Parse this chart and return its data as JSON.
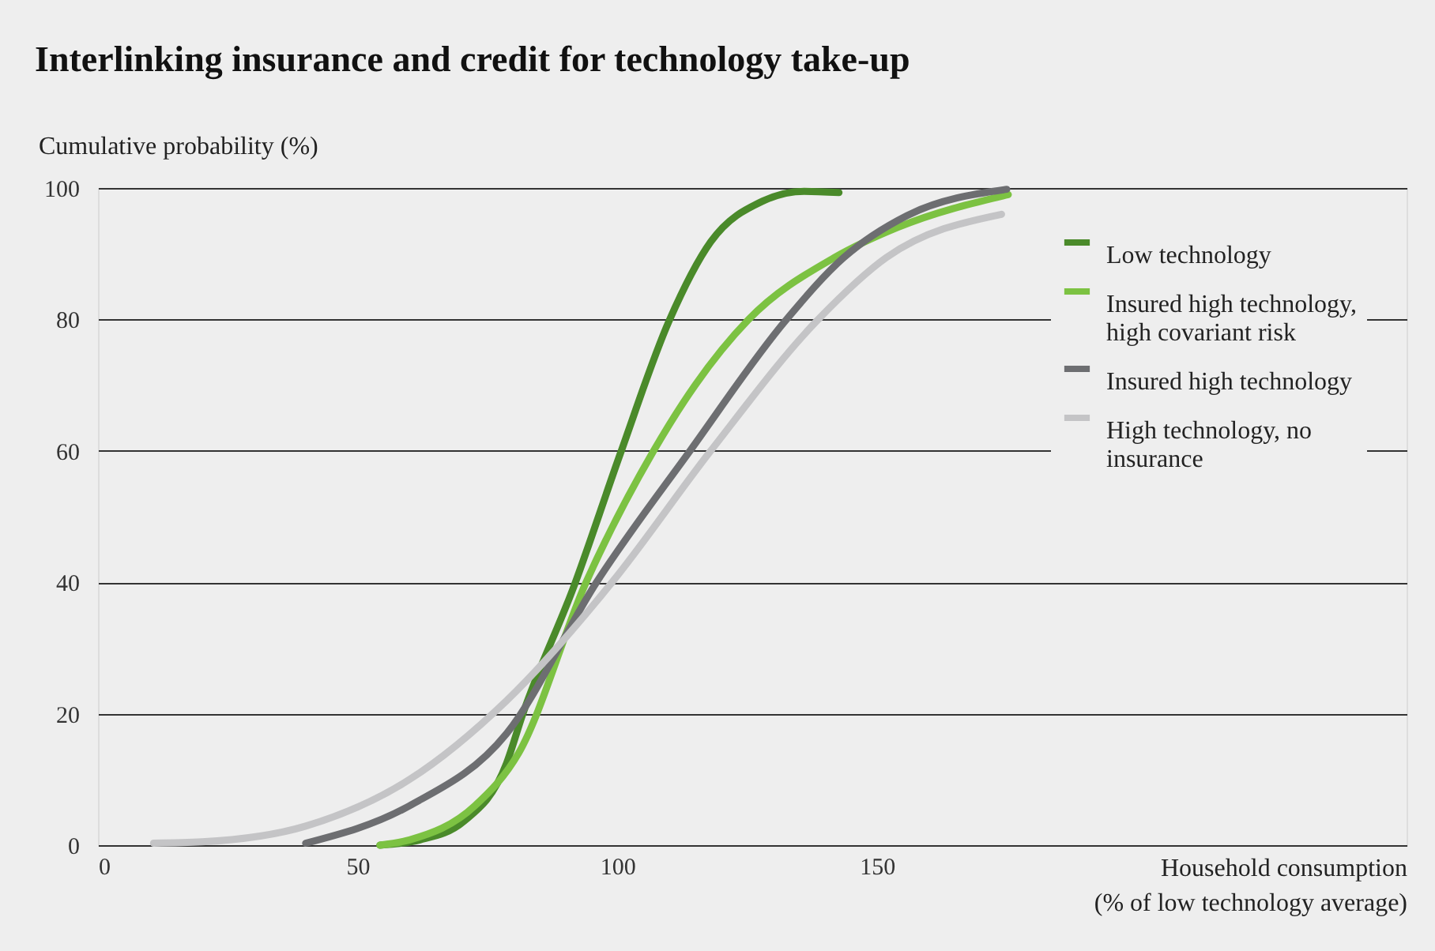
{
  "chart_data": {
    "type": "line",
    "title": "Interlinking insurance and credit for technology take-up",
    "xlabel": "Household consumption (% of low technology average)",
    "ylabel": "Cumulative probability (%)",
    "xlim": [
      0,
      252
    ],
    "xticks": [
      0,
      50,
      100,
      150
    ],
    "ylim": [
      0,
      100
    ],
    "yticks": [
      0,
      20,
      40,
      60,
      80,
      100
    ],
    "grid": "y",
    "legend": "top right",
    "marker": "none",
    "line_style": "solid",
    "series": [
      {
        "name": "Low technology",
        "color": "#4a8a2a",
        "x": [
          54.3,
          62,
          70.4,
          78.7,
          81.7,
          91.8,
          100.6,
          110,
          118,
          128,
          136,
          142.7
        ],
        "values": [
          0,
          0.8,
          3.6,
          12.5,
          19.7,
          39.7,
          59.6,
          79.8,
          91.8,
          98,
          99.5,
          99.3
        ]
      },
      {
        "name": "Insured high technology, high covariant risk",
        "color": "#7cc242",
        "x": [
          54.3,
          60,
          72.6,
          81,
          94,
          107,
          115,
          125.3,
          141.8,
          154,
          175.3
        ],
        "values": [
          0,
          0.8,
          6,
          14,
          40,
          60,
          70,
          80,
          89.4,
          94,
          99
        ]
      },
      {
        "name": "Insured high technology",
        "color": "#6d6e71",
        "x": [
          40,
          60,
          78.7,
          96,
          114,
          132.6,
          143.6,
          155.8,
          175
        ],
        "values": [
          0.3,
          6,
          17,
          40,
          60,
          80,
          89.4,
          95.8,
          99.8
        ]
      },
      {
        "name": "High technology, no insurance",
        "color": "#c4c4c6",
        "x": [
          10.7,
          20,
          40,
          60,
          78.7,
          99,
          118,
          138.7,
          151.8,
          174
        ],
        "values": [
          0.3,
          0.5,
          2.9,
          10,
          22,
          40,
          60,
          80,
          89.4,
          96
        ]
      }
    ]
  }
}
